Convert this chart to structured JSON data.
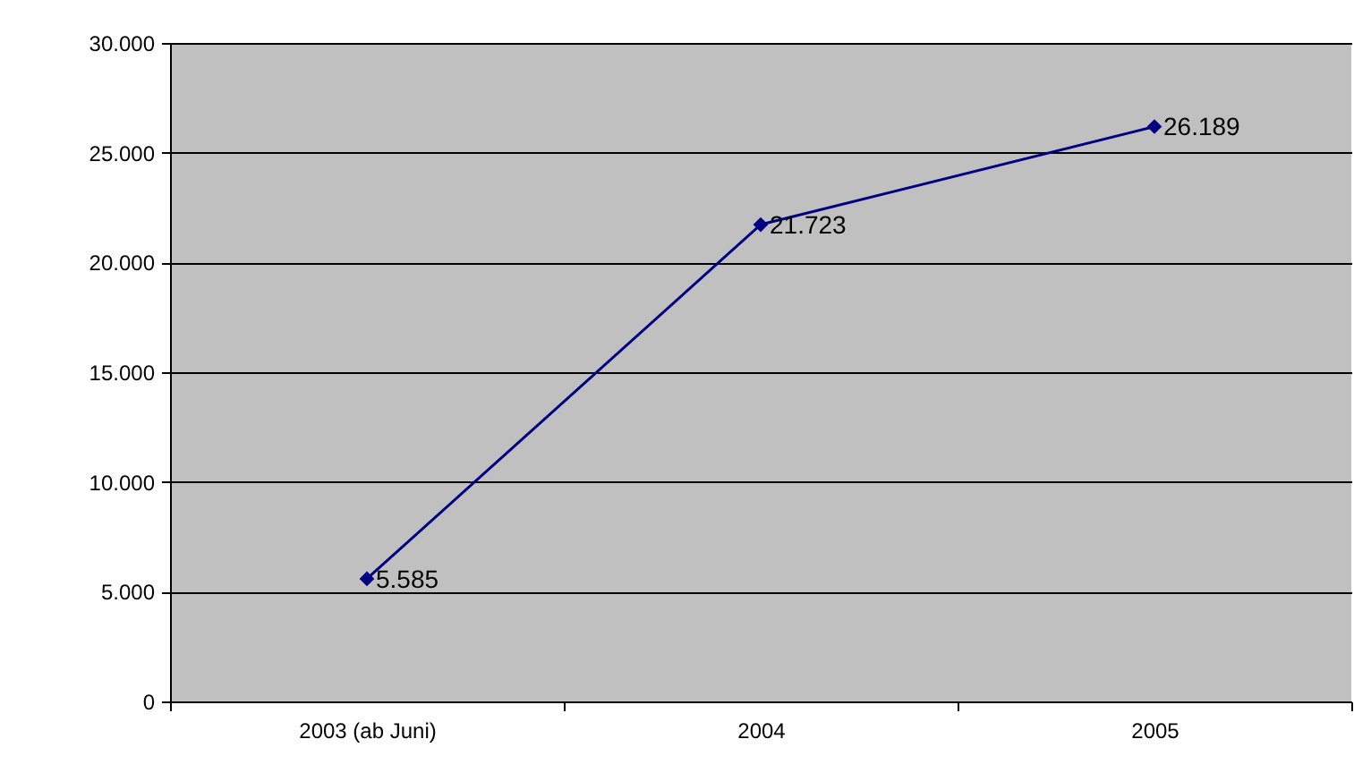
{
  "chart_data": {
    "type": "line",
    "categories": [
      "2003 (ab Juni)",
      "2004",
      "2005"
    ],
    "series": [
      {
        "color": "#000080",
        "values": [
          5585,
          21723,
          26189
        ],
        "value_labels": [
          "5.585",
          "21.723",
          "26.189"
        ]
      }
    ],
    "ylim": [
      0,
      30000
    ],
    "yticks": [
      {
        "value": 0,
        "label": "0"
      },
      {
        "value": 5000,
        "label": "5.000"
      },
      {
        "value": 10000,
        "label": "10.000"
      },
      {
        "value": 15000,
        "label": "15.000"
      },
      {
        "value": 20000,
        "label": "20.000"
      },
      {
        "value": 25000,
        "label": "25.000"
      },
      {
        "value": 30000,
        "label": "30.000"
      }
    ],
    "grid": "y",
    "marker": "diamond",
    "line_style": "solid"
  }
}
